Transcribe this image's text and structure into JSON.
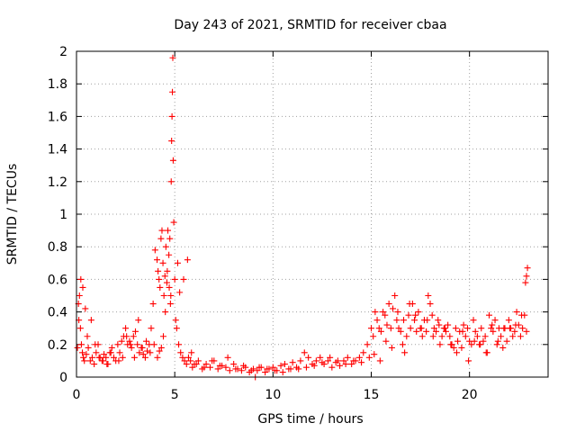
{
  "chart_data": {
    "type": "scatter",
    "title": "Day 243 of 2021, SRMTID for receiver cbaa",
    "xlabel": "GPS time / hours",
    "ylabel": "SRMTID / TECUs",
    "xlim": [
      0,
      24
    ],
    "ylim": [
      0,
      2
    ],
    "xticks": [
      0,
      5,
      10,
      15,
      20
    ],
    "xtick_labels": [
      "0",
      "5",
      "10",
      "15",
      "20"
    ],
    "yticks": [
      0,
      0.2,
      0.4,
      0.6,
      0.8,
      1,
      1.2,
      1.4,
      1.6,
      1.8,
      2
    ],
    "ytick_labels": [
      "0",
      "0.2",
      "0.4",
      "0.6",
      "0.8",
      "1",
      "1.2",
      "1.4",
      "1.6",
      "1.8",
      "2"
    ],
    "grid": true,
    "marker": "+",
    "color": "#ff0000",
    "series": [
      {
        "name": "SRMTID",
        "x": [
          0.05,
          0.1,
          0.15,
          0.2,
          0.25,
          0.3,
          0.35,
          0.4,
          0.5,
          0.6,
          0.7,
          0.8,
          0.9,
          1.0,
          1.1,
          1.2,
          1.3,
          1.4,
          1.5,
          1.6,
          1.7,
          1.8,
          1.9,
          2.0,
          2.1,
          2.2,
          2.3,
          2.4,
          2.5,
          2.6,
          2.7,
          2.8,
          2.9,
          3.0,
          3.1,
          3.2,
          3.3,
          3.4,
          3.5,
          3.6,
          3.7,
          3.8,
          3.9,
          4.0,
          4.1,
          4.15,
          4.2,
          4.25,
          4.3,
          4.35,
          4.4,
          4.45,
          4.5,
          4.55,
          4.6,
          4.65,
          4.7,
          4.75,
          4.8,
          4.82,
          4.84,
          4.86,
          4.88,
          4.9,
          4.92,
          4.95,
          5.0,
          5.05,
          5.1,
          5.2,
          5.3,
          5.4,
          5.5,
          5.6,
          5.7,
          5.8,
          5.9,
          6.0,
          6.2,
          6.4,
          6.6,
          6.8,
          7.0,
          7.2,
          7.4,
          7.6,
          7.8,
          8.0,
          8.2,
          8.4,
          8.6,
          8.8,
          9.0,
          9.1,
          9.2,
          9.4,
          9.6,
          9.8,
          10.0,
          10.2,
          10.4,
          10.6,
          10.8,
          11.0,
          11.2,
          11.4,
          11.6,
          11.8,
          12.0,
          12.2,
          12.4,
          12.6,
          12.8,
          13.0,
          13.2,
          13.4,
          13.6,
          13.8,
          14.0,
          14.2,
          14.4,
          14.6,
          14.8,
          15.0,
          15.1,
          15.2,
          15.3,
          15.4,
          15.5,
          15.6,
          15.7,
          15.8,
          15.9,
          16.0,
          16.1,
          16.2,
          16.3,
          16.4,
          16.5,
          16.6,
          16.7,
          16.8,
          16.9,
          17.0,
          17.1,
          17.2,
          17.3,
          17.4,
          17.5,
          17.6,
          17.7,
          17.8,
          17.9,
          18.0,
          18.1,
          18.2,
          18.3,
          18.4,
          18.5,
          18.6,
          18.7,
          18.8,
          18.9,
          19.0,
          19.1,
          19.2,
          19.3,
          19.4,
          19.5,
          19.6,
          19.7,
          19.8,
          19.9,
          20.0,
          20.1,
          20.2,
          20.3,
          20.4,
          20.5,
          20.6,
          20.7,
          20.8,
          20.9,
          21.0,
          21.1,
          21.2,
          21.3,
          21.4,
          21.5,
          21.6,
          21.7,
          21.8,
          21.9,
          22.0,
          22.1,
          22.2,
          22.3,
          22.4,
          22.5,
          22.6,
          22.7,
          22.8,
          22.9,
          0.12,
          0.22,
          0.32,
          0.45,
          0.55,
          0.75,
          0.95,
          1.15,
          1.35,
          1.55,
          1.75,
          2.15,
          2.35,
          2.55,
          2.75,
          2.95,
          3.15,
          3.35,
          3.55,
          3.75,
          3.95,
          4.12,
          4.22,
          4.32,
          4.42,
          4.52,
          4.62,
          4.72,
          4.78,
          5.15,
          5.25,
          5.45,
          5.65,
          5.85,
          6.1,
          6.5,
          6.9,
          7.3,
          7.7,
          8.1,
          8.5,
          8.9,
          9.3,
          9.7,
          10.1,
          10.5,
          10.9,
          11.3,
          11.7,
          12.1,
          12.5,
          12.9,
          13.3,
          13.7,
          14.1,
          14.5,
          14.9,
          15.15,
          15.45,
          15.75,
          16.05,
          16.35,
          16.65,
          16.95,
          17.25,
          17.55,
          17.85,
          18.15,
          18.45,
          18.75,
          19.05,
          19.35,
          19.65,
          19.95,
          20.25,
          20.55,
          20.85,
          21.15,
          21.45,
          21.75,
          22.05,
          22.35,
          22.65,
          22.85,
          22.9,
          22.95
        ],
        "y": [
          0.18,
          0.45,
          0.5,
          0.3,
          0.2,
          0.15,
          0.12,
          0.1,
          0.14,
          0.18,
          0.1,
          0.12,
          0.08,
          0.15,
          0.2,
          0.12,
          0.1,
          0.14,
          0.12,
          0.08,
          0.15,
          0.18,
          0.12,
          0.1,
          0.2,
          0.15,
          0.22,
          0.25,
          0.3,
          0.2,
          0.22,
          0.18,
          0.25,
          0.28,
          0.2,
          0.15,
          0.18,
          0.14,
          0.12,
          0.16,
          0.2,
          0.3,
          0.45,
          0.78,
          0.72,
          0.65,
          0.6,
          0.55,
          0.85,
          0.9,
          0.7,
          0.5,
          0.62,
          0.8,
          0.58,
          0.9,
          0.75,
          0.85,
          0.5,
          1.2,
          1.45,
          1.6,
          1.75,
          1.96,
          1.33,
          0.95,
          0.6,
          0.35,
          0.3,
          0.2,
          0.15,
          0.12,
          0.1,
          0.08,
          0.12,
          0.1,
          0.06,
          0.08,
          0.1,
          0.05,
          0.08,
          0.06,
          0.1,
          0.05,
          0.07,
          0.06,
          0.04,
          0.08,
          0.05,
          0.04,
          0.06,
          0.03,
          0.05,
          0.0,
          0.04,
          0.06,
          0.03,
          0.05,
          0.06,
          0.04,
          0.07,
          0.08,
          0.05,
          0.09,
          0.06,
          0.1,
          0.15,
          0.12,
          0.08,
          0.1,
          0.12,
          0.08,
          0.1,
          0.06,
          0.09,
          0.07,
          0.1,
          0.12,
          0.08,
          0.1,
          0.12,
          0.15,
          0.2,
          0.3,
          0.25,
          0.4,
          0.35,
          0.3,
          0.28,
          0.4,
          0.38,
          0.32,
          0.45,
          0.3,
          0.42,
          0.5,
          0.35,
          0.3,
          0.28,
          0.2,
          0.15,
          0.25,
          0.38,
          0.3,
          0.45,
          0.35,
          0.28,
          0.4,
          0.3,
          0.25,
          0.35,
          0.28,
          0.5,
          0.45,
          0.38,
          0.3,
          0.28,
          0.35,
          0.2,
          0.25,
          0.3,
          0.28,
          0.32,
          0.25,
          0.2,
          0.18,
          0.3,
          0.22,
          0.28,
          0.18,
          0.32,
          0.25,
          0.3,
          0.22,
          0.2,
          0.35,
          0.28,
          0.25,
          0.2,
          0.3,
          0.22,
          0.25,
          0.15,
          0.38,
          0.3,
          0.28,
          0.35,
          0.2,
          0.3,
          0.25,
          0.18,
          0.3,
          0.22,
          0.35,
          0.3,
          0.25,
          0.28,
          0.4,
          0.32,
          0.25,
          0.3,
          0.38,
          0.28,
          0.35,
          0.6,
          0.55,
          0.42,
          0.25,
          0.35,
          0.2,
          0.12,
          0.1,
          0.08,
          0.15,
          0.1,
          0.12,
          0.25,
          0.2,
          0.12,
          0.35,
          0.18,
          0.22,
          0.15,
          0.2,
          0.12,
          0.16,
          0.18,
          0.25,
          0.4,
          0.65,
          0.55,
          0.45,
          0.7,
          0.52,
          0.6,
          0.72,
          0.15,
          0.08,
          0.06,
          0.1,
          0.07,
          0.12,
          0.05,
          0.07,
          0.04,
          0.06,
          0.05,
          0.04,
          0.03,
          0.05,
          0.05,
          0.06,
          0.07,
          0.09,
          0.12,
          0.1,
          0.08,
          0.1,
          0.09,
          0.12,
          0.14,
          0.1,
          0.22,
          0.18,
          0.4,
          0.35,
          0.45,
          0.38,
          0.3,
          0.35,
          0.25,
          0.32,
          0.3,
          0.2,
          0.15,
          0.28,
          0.1,
          0.22,
          0.2,
          0.15,
          0.32,
          0.22,
          0.3,
          0.3,
          0.32,
          0.38,
          0.58,
          0.62,
          0.67
        ]
      }
    ]
  }
}
